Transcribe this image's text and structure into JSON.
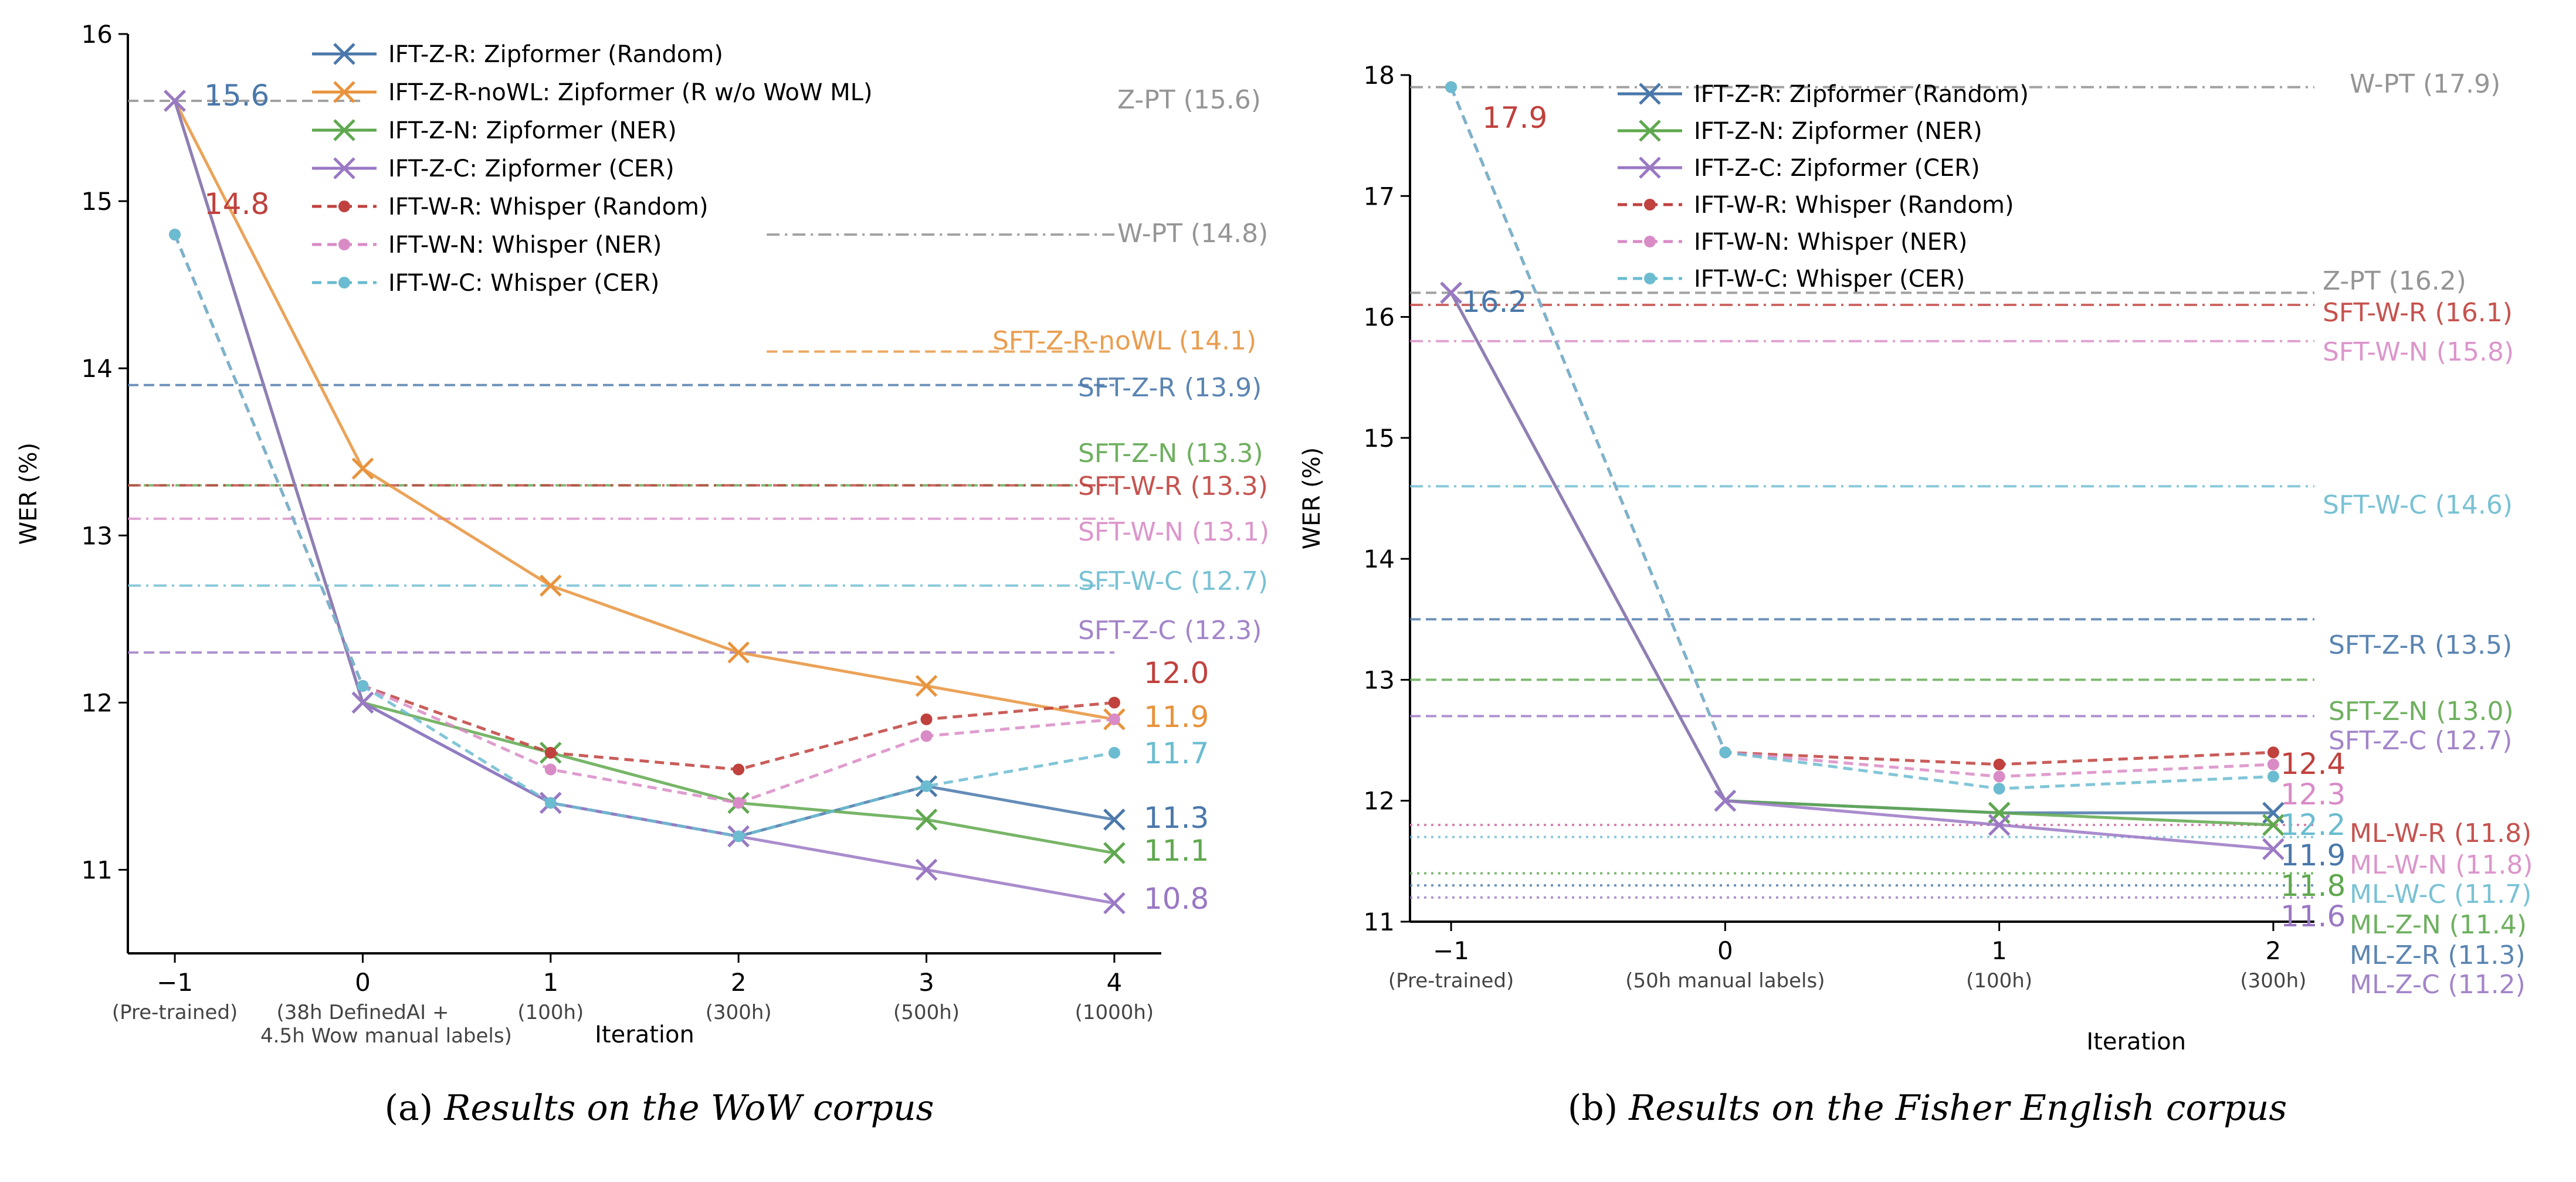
{
  "colors": {
    "IFT-Z-R": "#4a78aa",
    "IFT-Z-R-noWL": "#e8933c",
    "IFT-Z-N": "#5fa84e",
    "IFT-Z-C": "#9a78c4",
    "IFT-W-R": "#c0413d",
    "IFT-W-N": "#d98bc6",
    "IFT-W-C": "#6bbcd0",
    "Z-PT": "#8a8a8a",
    "W-PT": "#8a8a8a",
    "SFT-Z-R-noWL": "#e8933c",
    "SFT-Z-R": "#4a78aa",
    "SFT-Z-N": "#5fa84e",
    "SFT-Z-C": "#9a78c4",
    "SFT-W-R": "#c0413d",
    "SFT-W-N": "#d98bc6",
    "SFT-W-C": "#6bbcd0",
    "ML-W-R": "#c0413d",
    "ML-W-N": "#d98bc6",
    "ML-W-C": "#6bbcd0",
    "ML-Z-N": "#5fa84e",
    "ML-Z-R": "#4a78aa",
    "ML-Z-C": "#9a78c4",
    "purple_line": "#7c6e9c"
  },
  "chart_data": [
    {
      "type": "line",
      "caption_prefix": "(a) ",
      "caption_italic": "Results on the WoW corpus",
      "xlabel": "Iteration",
      "ylabel": "WER (%)",
      "ylim": [
        10.5,
        16
      ],
      "yticks": [
        "11",
        "12",
        "13",
        "14",
        "15",
        "16"
      ],
      "x": [
        -1,
        0,
        1,
        2,
        3,
        4
      ],
      "xtick_labels": [
        "−1",
        "0",
        "1",
        "2",
        "3",
        "4"
      ],
      "xtick_sublabels": [
        "(Pre-trained)",
        "(38h DefinedAI +",
        "(100h)",
        "(300h)",
        "(500h)",
        "(1000h)"
      ],
      "xtick_sublabels2": [
        "",
        "4.5h Wow manual labels)",
        "",
        "",
        "",
        ""
      ],
      "series": [
        {
          "key": "IFT-Z-R",
          "name": "IFT-Z-R: Zipformer (Random)",
          "marker": "x",
          "dash": "solid",
          "values": [
            15.6,
            12.0,
            11.4,
            11.2,
            11.5,
            11.3
          ]
        },
        {
          "key": "IFT-Z-R-noWL",
          "name": "IFT-Z-R-noWL: Zipformer (R w/o WoW ML)",
          "marker": "x",
          "dash": "solid",
          "values": [
            15.6,
            13.4,
            12.7,
            12.3,
            12.1,
            11.9
          ]
        },
        {
          "key": "IFT-Z-N",
          "name": "IFT-Z-N: Zipformer (NER)",
          "marker": "x",
          "dash": "solid",
          "values": [
            15.6,
            12.0,
            11.7,
            11.4,
            11.3,
            11.1
          ]
        },
        {
          "key": "IFT-Z-C",
          "name": "IFT-Z-C: Zipformer (CER)",
          "marker": "x",
          "dash": "solid",
          "values": [
            15.6,
            12.0,
            11.4,
            11.2,
            11.0,
            10.8
          ]
        },
        {
          "key": "IFT-W-R",
          "name": "IFT-W-R: Whisper (Random)",
          "marker": "o",
          "dash": "dashed",
          "values": [
            14.8,
            12.1,
            11.7,
            11.6,
            11.9,
            12.0
          ]
        },
        {
          "key": "IFT-W-N",
          "name": "IFT-W-N: Whisper (NER)",
          "marker": "o",
          "dash": "dashed",
          "values": [
            14.8,
            12.1,
            11.6,
            11.4,
            11.8,
            11.9
          ]
        },
        {
          "key": "IFT-W-C",
          "name": "IFT-W-C: Whisper (CER)",
          "marker": "o",
          "dash": "dashed",
          "values": [
            14.8,
            12.1,
            11.4,
            11.2,
            11.5,
            11.7
          ]
        }
      ],
      "hlines": [
        {
          "key": "Z-PT",
          "label": "Z-PT (15.6)",
          "y": 15.6,
          "dash": "dashed"
        },
        {
          "key": "W-PT",
          "label": "W-PT (14.8)",
          "y": 14.8,
          "dash": "dashdot"
        },
        {
          "key": "SFT-Z-R-noWL",
          "label": "SFT-Z-R-noWL (14.1)",
          "y": 14.1,
          "dash": "dashed"
        },
        {
          "key": "SFT-Z-R",
          "label": "SFT-Z-R (13.9)",
          "y": 13.9,
          "dash": "dashed"
        },
        {
          "key": "SFT-Z-N",
          "label": "SFT-Z-N (13.3)",
          "y": 13.3,
          "dash": "dashed"
        },
        {
          "key": "SFT-W-R",
          "label": "SFT-W-R (13.3)",
          "y": 13.3,
          "dash": "dashdot"
        },
        {
          "key": "SFT-W-N",
          "label": "SFT-W-N (13.1)",
          "y": 13.1,
          "dash": "dashdot"
        },
        {
          "key": "SFT-W-C",
          "label": "SFT-W-C (12.7)",
          "y": 12.7,
          "dash": "dashdot"
        },
        {
          "key": "SFT-Z-C",
          "label": "SFT-Z-C (12.3)",
          "y": 12.3,
          "dash": "dashed"
        }
      ],
      "point_labels": [
        {
          "text": "15.6",
          "color": "IFT-Z-R"
        },
        {
          "text": "14.8",
          "color": "IFT-W-R"
        },
        {
          "text": "12.0",
          "color": "IFT-W-R"
        },
        {
          "text": "11.9",
          "color": "IFT-Z-R-noWL"
        },
        {
          "text": "11.7",
          "color": "IFT-W-C"
        },
        {
          "text": "11.3",
          "color": "IFT-Z-R"
        },
        {
          "text": "11.1",
          "color": "IFT-Z-N"
        },
        {
          "text": "10.8",
          "color": "IFT-Z-C"
        }
      ]
    },
    {
      "type": "line",
      "caption_prefix": "(b) ",
      "caption_italic": "Results on the Fisher English corpus",
      "xlabel": "Iteration",
      "ylabel": "WER (%)",
      "ylim": [
        11,
        18
      ],
      "yticks": [
        "11",
        "12",
        "13",
        "14",
        "15",
        "16",
        "17",
        "18"
      ],
      "x": [
        -1,
        0,
        1,
        2
      ],
      "xtick_labels": [
        "−1",
        "0",
        "1",
        "2"
      ],
      "xtick_sublabels": [
        "(Pre-trained)",
        "(50h manual labels)",
        "(100h)",
        "(300h)"
      ],
      "xtick_sublabels2": [
        "",
        "",
        "",
        ""
      ],
      "series": [
        {
          "key": "IFT-Z-R",
          "name": "IFT-Z-R: Zipformer (Random)",
          "marker": "x",
          "dash": "solid",
          "values": [
            16.2,
            12.0,
            11.9,
            11.9
          ]
        },
        {
          "key": "IFT-Z-N",
          "name": "IFT-Z-N: Zipformer (NER)",
          "marker": "x",
          "dash": "solid",
          "values": [
            16.2,
            12.0,
            11.9,
            11.8
          ]
        },
        {
          "key": "IFT-Z-C",
          "name": "IFT-Z-C: Zipformer (CER)",
          "marker": "x",
          "dash": "solid",
          "values": [
            16.2,
            12.0,
            11.8,
            11.6
          ]
        },
        {
          "key": "IFT-W-R",
          "name": "IFT-W-R: Whisper (Random)",
          "marker": "o",
          "dash": "dashed",
          "values": [
            17.9,
            12.4,
            12.3,
            12.4
          ]
        },
        {
          "key": "IFT-W-N",
          "name": "IFT-W-N: Whisper (NER)",
          "marker": "o",
          "dash": "dashed",
          "values": [
            17.9,
            12.4,
            12.2,
            12.3
          ]
        },
        {
          "key": "IFT-W-C",
          "name": "IFT-W-C: Whisper (CER)",
          "marker": "o",
          "dash": "dashed",
          "values": [
            17.9,
            12.4,
            12.1,
            12.2
          ]
        }
      ],
      "hlines": [
        {
          "key": "W-PT",
          "label": "W-PT (17.9)",
          "y": 17.9,
          "dash": "dashdot"
        },
        {
          "key": "Z-PT",
          "label": "Z-PT (16.2)",
          "y": 16.2,
          "dash": "dashed"
        },
        {
          "key": "SFT-W-R",
          "label": "SFT-W-R (16.1)",
          "y": 16.1,
          "dash": "dashdot"
        },
        {
          "key": "SFT-W-N",
          "label": "SFT-W-N (15.8)",
          "y": 15.8,
          "dash": "dashdot"
        },
        {
          "key": "SFT-W-C",
          "label": "SFT-W-C (14.6)",
          "y": 14.6,
          "dash": "dashdot"
        },
        {
          "key": "SFT-Z-R",
          "label": "SFT-Z-R (13.5)",
          "y": 13.5,
          "dash": "dashed"
        },
        {
          "key": "SFT-Z-N",
          "label": "SFT-Z-N (13.0)",
          "y": 13.0,
          "dash": "dashed"
        },
        {
          "key": "SFT-Z-C",
          "label": "SFT-Z-C (12.7)",
          "y": 12.7,
          "dash": "dashed"
        },
        {
          "key": "ML-W-R",
          "label": "ML-W-R (11.8)",
          "y": 11.8,
          "dash": "dotted"
        },
        {
          "key": "ML-W-N",
          "label": "ML-W-N (11.8)",
          "y": 11.8,
          "dash": "dotted"
        },
        {
          "key": "ML-W-C",
          "label": "ML-W-C (11.7)",
          "y": 11.7,
          "dash": "dotted"
        },
        {
          "key": "ML-Z-N",
          "label": "ML-Z-N (11.4)",
          "y": 11.4,
          "dash": "dotted"
        },
        {
          "key": "ML-Z-R",
          "label": "ML-Z-R (11.3)",
          "y": 11.3,
          "dash": "dotted"
        },
        {
          "key": "ML-Z-C",
          "label": "ML-Z-C (11.2)",
          "y": 11.2,
          "dash": "dotted"
        }
      ],
      "point_labels": [
        {
          "text": "16.2",
          "color": "IFT-Z-R"
        },
        {
          "text": "17.9",
          "color": "IFT-W-R"
        },
        {
          "text": "12.4",
          "color": "IFT-W-R"
        },
        {
          "text": "12.3",
          "color": "IFT-W-N"
        },
        {
          "text": "12.2",
          "color": "IFT-W-C"
        },
        {
          "text": "11.9",
          "color": "IFT-Z-R"
        },
        {
          "text": "11.8",
          "color": "IFT-Z-N"
        },
        {
          "text": "11.6",
          "color": "IFT-Z-C"
        }
      ]
    }
  ]
}
